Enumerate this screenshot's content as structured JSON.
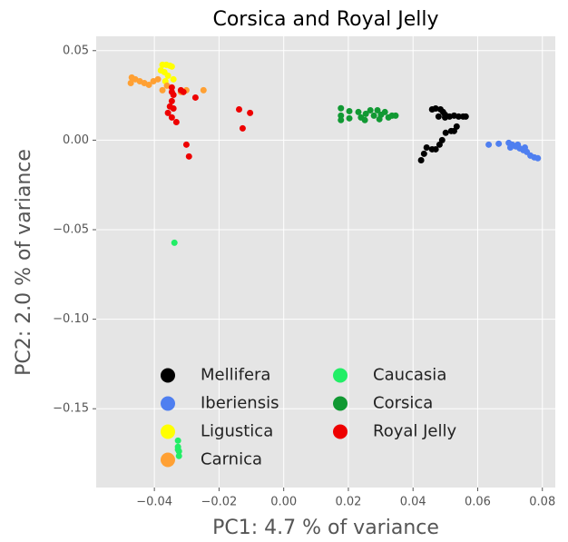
{
  "chart_data": {
    "type": "scatter",
    "title": "Corsica and Royal Jelly",
    "xlabel": "PC1: 4.7 % of variance",
    "ylabel": "PC2: 2.0 % of variance",
    "xlim": [
      -0.058,
      0.084
    ],
    "ylim": [
      -0.194,
      0.058
    ],
    "xticks": [
      {
        "value": -0.04,
        "label": "−0.04"
      },
      {
        "value": -0.02,
        "label": "−0.02"
      },
      {
        "value": 0,
        "label": "0.00"
      },
      0.02,
      0.04,
      0.06,
      0.08
    ],
    "yticks": [
      0.05,
      {
        "value": 0,
        "label": "0.00"
      },
      {
        "value": -0.05,
        "label": "−0.05"
      },
      {
        "value": -0.1,
        "label": "−0.10"
      },
      {
        "value": -0.15,
        "label": "−0.15"
      }
    ],
    "grid": true,
    "legend": "lower right",
    "series": [
      {
        "name": "Mellifera",
        "color": "#000000",
        "x": [
          0.0459,
          0.047,
          0.0485,
          0.0493,
          0.0499,
          0.0513,
          0.0527,
          0.0541,
          0.0555,
          0.0563,
          0.0499,
          0.0518,
          0.0527,
          0.0501,
          0.049,
          0.0482,
          0.047,
          0.0459,
          0.0442,
          0.0434,
          0.0425,
          0.0479,
          0.0535
        ],
        "values": [
          0.0172,
          0.0177,
          0.0172,
          0.0157,
          0.0142,
          0.0132,
          0.0137,
          0.0132,
          0.0132,
          0.0132,
          0.0127,
          0.0051,
          0.0051,
          0.0041,
          0.0,
          -0.0025,
          -0.0051,
          -0.0051,
          -0.0041,
          -0.0076,
          -0.0112,
          0.0132,
          0.0076
        ]
      },
      {
        "name": "Iberiensis",
        "color": "#4f7ff0",
        "x": [
          0.0634,
          0.0665,
          0.0696,
          0.0707,
          0.0718,
          0.073,
          0.0741,
          0.0752,
          0.0763,
          0.0775,
          0.0786,
          0.0701,
          0.0724,
          0.0746
        ],
        "values": [
          -0.0025,
          -0.002,
          -0.0015,
          -0.0025,
          -0.0035,
          -0.0046,
          -0.0056,
          -0.0066,
          -0.0086,
          -0.0096,
          -0.0101,
          -0.0041,
          -0.0025,
          -0.0041
        ]
      },
      {
        "name": "Ligustica",
        "color": "#ffff00",
        "x": [
          -0.0375,
          -0.0363,
          -0.0352,
          -0.038,
          -0.0369,
          -0.0358,
          -0.0346,
          -0.0366,
          -0.0341
        ],
        "values": [
          0.0421,
          0.0421,
          0.0416,
          0.039,
          0.038,
          0.036,
          0.0411,
          0.0329,
          0.034
        ]
      },
      {
        "name": "Carnica",
        "color": "#ffa033",
        "x": [
          -0.047,
          -0.0459,
          -0.0445,
          -0.0431,
          -0.0417,
          -0.0403,
          -0.0389,
          -0.0473,
          -0.0375,
          -0.0318,
          -0.0301,
          -0.0248,
          -0.0361
        ],
        "values": [
          0.035,
          0.034,
          0.0329,
          0.0319,
          0.0309,
          0.0329,
          0.034,
          0.0319,
          0.0279,
          0.0269,
          0.0279,
          0.0279,
          0.0304
        ]
      },
      {
        "name": "Caucasia",
        "color": "#22ee66",
        "x": [
          -0.0338,
          -0.0327,
          -0.0327,
          -0.0324,
          -0.0324,
          -0.0327
        ],
        "values": [
          -0.0573,
          -0.1678,
          -0.1713,
          -0.1738,
          -0.1764,
          -0.1728
        ]
      },
      {
        "name": "Corsica",
        "color": "#119933",
        "x": [
          0.0177,
          0.0177,
          0.0177,
          0.0203,
          0.0203,
          0.0231,
          0.0239,
          0.0254,
          0.0268,
          0.0279,
          0.029,
          0.0301,
          0.0313,
          0.0324,
          0.0335,
          0.0346,
          0.0296,
          0.0251
        ],
        "values": [
          0.0178,
          0.0137,
          0.0112,
          0.0162,
          0.0122,
          0.0157,
          0.0127,
          0.0147,
          0.0167,
          0.0137,
          0.0167,
          0.0142,
          0.0157,
          0.0127,
          0.0137,
          0.0137,
          0.0117,
          0.0112
        ]
      },
      {
        "name": "Royal Jelly",
        "color": "#ee0000",
        "x": [
          -0.0346,
          -0.0341,
          -0.0346,
          -0.0352,
          -0.0358,
          -0.0346,
          -0.0332,
          -0.0318,
          -0.031,
          -0.0273,
          -0.0346,
          -0.0138,
          -0.0104,
          -0.0127,
          -0.0301,
          -0.0293,
          -0.0341
        ],
        "values": [
          0.0294,
          0.0253,
          0.0218,
          0.0188,
          0.0152,
          0.0127,
          0.0101,
          0.0279,
          0.0269,
          0.0238,
          0.0269,
          0.0172,
          0.0152,
          0.0066,
          -0.0025,
          -0.0091,
          0.0177
        ]
      }
    ]
  }
}
